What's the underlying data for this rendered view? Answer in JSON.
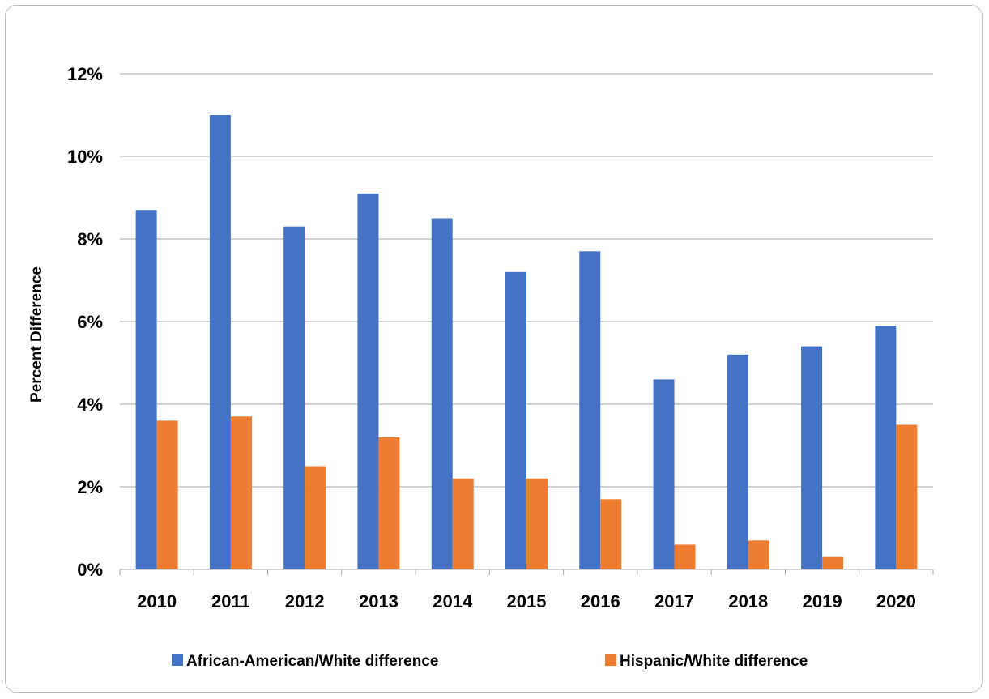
{
  "chart_data": {
    "type": "bar",
    "title": "",
    "xlabel": "",
    "ylabel": "Percent Difference",
    "ylim": [
      0,
      12
    ],
    "y_ticks": [
      "0%",
      "2%",
      "4%",
      "6%",
      "8%",
      "10%",
      "12%"
    ],
    "categories": [
      "2010",
      "2011",
      "2012",
      "2013",
      "2014",
      "2015",
      "2016",
      "2017",
      "2018",
      "2019",
      "2020"
    ],
    "series": [
      {
        "name": "African-American/White difference",
        "color": "#4472c4",
        "values": [
          8.7,
          11.0,
          8.3,
          9.1,
          8.5,
          7.2,
          7.7,
          4.6,
          5.2,
          5.4,
          5.9
        ]
      },
      {
        "name": "Hispanic/White difference",
        "color": "#ed7d31",
        "values": [
          3.6,
          3.7,
          2.5,
          3.2,
          2.2,
          2.2,
          1.7,
          0.6,
          0.7,
          0.3,
          3.5
        ]
      }
    ],
    "grid": true,
    "legend_position": "bottom"
  }
}
